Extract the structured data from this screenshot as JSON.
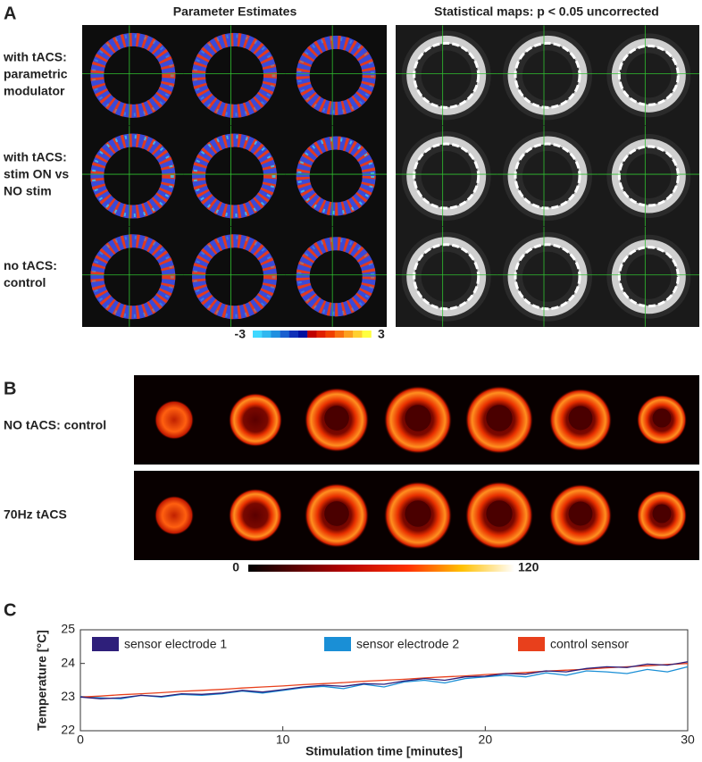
{
  "panels": {
    "a": {
      "label": "A",
      "col_titles": [
        "Parameter Estimates",
        "Statistical maps: p < 0.05 uncorrected"
      ],
      "row_labels": [
        [
          "with tACS:",
          "parametric",
          "modulator"
        ],
        [
          "with tACS:",
          "stim ON vs",
          "NO stim"
        ],
        [
          "no tACS:",
          "control"
        ]
      ],
      "colorbar": {
        "min": -3,
        "max": 3
      }
    },
    "b": {
      "label": "B",
      "row_labels": [
        "NO tACS: control",
        "70Hz tACS"
      ],
      "colorbar": {
        "min": 0,
        "max": 120
      }
    },
    "c": {
      "label": "C"
    }
  },
  "chart_data": {
    "type": "line",
    "xlabel": "Stimulation time [minutes]",
    "ylabel": "Temperature [°C]",
    "xlim": [
      0,
      30
    ],
    "ylim": [
      22,
      25
    ],
    "xticks": [
      0,
      10,
      20,
      30
    ],
    "yticks": [
      22,
      23,
      24,
      25
    ],
    "grid": false,
    "x": [
      0,
      1,
      2,
      3,
      4,
      5,
      6,
      7,
      8,
      9,
      10,
      11,
      12,
      13,
      14,
      15,
      16,
      17,
      18,
      19,
      20,
      21,
      22,
      23,
      24,
      25,
      26,
      27,
      28,
      29,
      30
    ],
    "series": [
      {
        "name": "sensor electrode 1",
        "color": "#2e1f7a",
        "values": [
          23.0,
          22.95,
          22.98,
          23.05,
          23.02,
          23.1,
          23.08,
          23.12,
          23.2,
          23.15,
          23.22,
          23.3,
          23.35,
          23.32,
          23.4,
          23.38,
          23.48,
          23.55,
          23.5,
          23.6,
          23.62,
          23.7,
          23.68,
          23.78,
          23.75,
          23.85,
          23.9,
          23.88,
          23.98,
          23.95,
          24.05
        ]
      },
      {
        "name": "sensor electrode 2",
        "color": "#1a8fd6",
        "values": [
          23.02,
          22.98,
          22.95,
          23.05,
          23.0,
          23.08,
          23.05,
          23.1,
          23.18,
          23.12,
          23.2,
          23.28,
          23.32,
          23.25,
          23.38,
          23.3,
          23.45,
          23.5,
          23.42,
          23.55,
          23.6,
          23.65,
          23.6,
          23.72,
          23.65,
          23.78,
          23.75,
          23.7,
          23.82,
          23.75,
          23.9
        ]
      },
      {
        "name": "control sensor",
        "color": "#e8401c",
        "values": [
          23.0,
          23.03,
          23.07,
          23.1,
          23.13,
          23.17,
          23.2,
          23.23,
          23.27,
          23.3,
          23.33,
          23.37,
          23.4,
          23.43,
          23.47,
          23.5,
          23.53,
          23.57,
          23.6,
          23.63,
          23.67,
          23.7,
          23.73,
          23.77,
          23.8,
          23.83,
          23.87,
          23.9,
          23.93,
          23.97,
          24.0
        ]
      }
    ]
  }
}
